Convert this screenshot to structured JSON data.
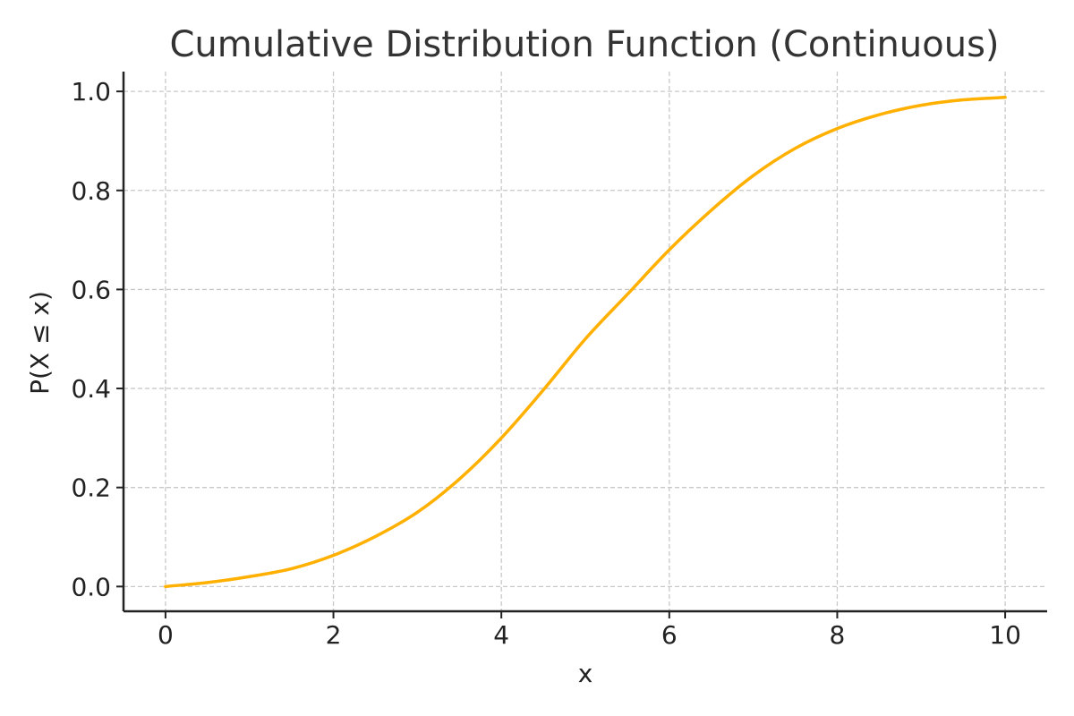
{
  "chart_data": {
    "type": "line",
    "title": "Cumulative Distribution Function (Continuous)",
    "xlabel": "x",
    "ylabel": "P(X ≤ x)",
    "xlim": [
      -0.5,
      10.5
    ],
    "ylim": [
      -0.05,
      1.04
    ],
    "xticks": [
      0,
      2,
      4,
      6,
      8,
      10
    ],
    "xtick_labels": [
      "0",
      "2",
      "4",
      "6",
      "8",
      "10"
    ],
    "yticks": [
      0.0,
      0.2,
      0.4,
      0.6,
      0.8,
      1.0
    ],
    "ytick_labels": [
      "0.0",
      "0.2",
      "0.4",
      "0.6",
      "0.8",
      "1.0"
    ],
    "grid": true,
    "legend": "none",
    "series": [
      {
        "color": "#FFB000",
        "x": [
          0,
          0.5,
          1,
          1.5,
          2,
          2.5,
          3,
          3.5,
          4,
          4.5,
          5,
          5.5,
          6,
          6.5,
          7,
          7.5,
          8,
          8.5,
          9,
          9.5,
          10
        ],
        "y": [
          0.0,
          0.008,
          0.02,
          0.036,
          0.063,
          0.101,
          0.15,
          0.217,
          0.3,
          0.397,
          0.5,
          0.59,
          0.68,
          0.76,
          0.83,
          0.885,
          0.925,
          0.953,
          0.972,
          0.983,
          0.988
        ]
      }
    ]
  }
}
